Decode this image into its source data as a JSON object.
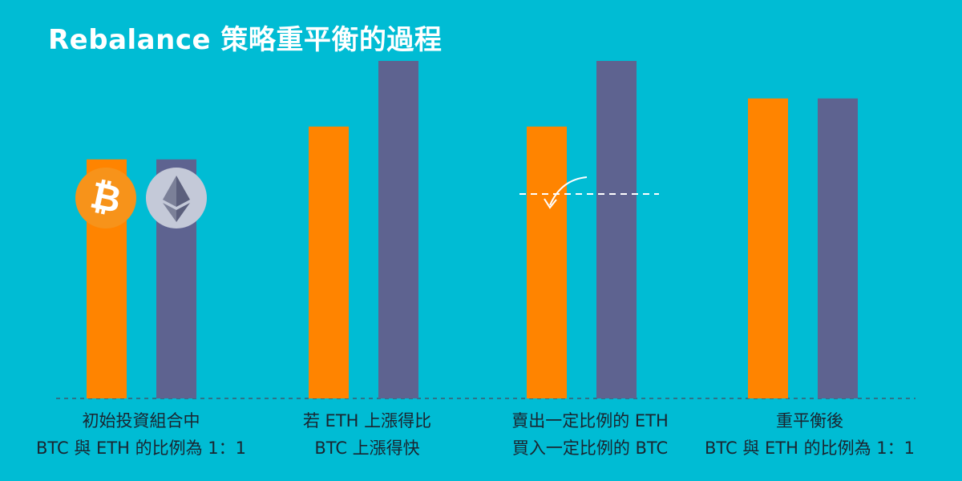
{
  "title": "Rebalance 策略重平衡的過程",
  "colors": {
    "background": "#00BCD4",
    "btc": "#FF8400",
    "eth": "#5E6390",
    "btc_icon": "#F7931A",
    "eth_icon": "#C4C9D8",
    "text": "#1a2530"
  },
  "icons": [
    "bitcoin-icon",
    "ethereum-icon",
    "rebalance-arrow-icon"
  ],
  "chart_data": {
    "type": "bar",
    "categories": [
      "stage1",
      "stage2",
      "stage3",
      "stage4"
    ],
    "series": [
      {
        "key": "btc",
        "values": [
          5.1,
          5.8,
          5.8,
          6.4
        ]
      },
      {
        "key": "eth",
        "values": [
          5.1,
          7.2,
          7.2,
          6.4
        ]
      }
    ],
    "ylim": [
      0,
      8.5
    ],
    "grid": false
  },
  "stages": [
    {
      "caption": [
        "初始投資組合中",
        "BTC 與 ETH 的比例為 1：1"
      ]
    },
    {
      "caption": [
        "若 ETH 上漲得比",
        "BTC 上漲得快"
      ]
    },
    {
      "caption": [
        "賣出一定比例的 ETH",
        "買入一定比例的 BTC"
      ]
    },
    {
      "caption": [
        "重平衡後",
        "BTC 與 ETH 的比例為 1：1"
      ]
    }
  ]
}
